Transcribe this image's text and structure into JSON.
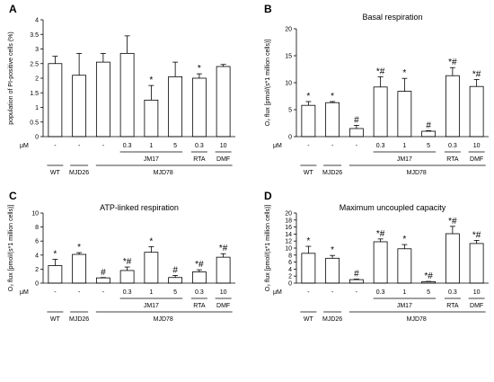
{
  "chart_data": [
    {
      "type": "bar",
      "panel_label": "A",
      "title": "",
      "xlabel": "",
      "ylabel": "population of PI-positive cells (%)",
      "ylim": [
        0,
        4
      ],
      "yticks": [
        0,
        0.5,
        1,
        1.5,
        2,
        2.5,
        3,
        3.5,
        4
      ],
      "categories": [
        "-",
        "-",
        "-",
        "0.3",
        "1",
        "5",
        "0.3",
        "10"
      ],
      "values": [
        2.5,
        2.1,
        2.55,
        2.85,
        1.25,
        2.05,
        2.0,
        2.4
      ],
      "errors": [
        0.25,
        0.75,
        0.3,
        0.6,
        0.5,
        0.5,
        0.15,
        0.07
      ],
      "annotations": [
        "",
        "",
        "",
        "",
        "*",
        "",
        "*",
        ""
      ]
    },
    {
      "type": "bar",
      "panel_label": "B",
      "title": "Basal respiration",
      "xlabel": "",
      "ylabel": "O₂ flux [pmol/(s*1 million cells)]",
      "ylim": [
        0,
        20
      ],
      "yticks": [
        0,
        5,
        10,
        15,
        20
      ],
      "categories": [
        "-",
        "-",
        "-",
        "0.3",
        "1",
        "5",
        "0.3",
        "10"
      ],
      "values": [
        5.8,
        6.3,
        1.5,
        9.2,
        8.4,
        1.0,
        11.3,
        9.3
      ],
      "errors": [
        0.7,
        0.2,
        0.6,
        1.9,
        2.4,
        0.1,
        1.5,
        1.3
      ],
      "annotations": [
        "*",
        "*",
        "#",
        "*#",
        "*",
        "#",
        "*#",
        "*#"
      ]
    },
    {
      "type": "bar",
      "panel_label": "C",
      "title": "ATP-linked respiration",
      "xlabel": "",
      "ylabel": "O₂ flux [pmol/(s*1 million cells)]",
      "ylim": [
        0,
        10
      ],
      "yticks": [
        0,
        2,
        4,
        6,
        8,
        10
      ],
      "categories": [
        "-",
        "-",
        "-",
        "0.3",
        "1",
        "5",
        "0.3",
        "10"
      ],
      "values": [
        2.5,
        4.1,
        0.75,
        1.8,
        4.4,
        0.8,
        1.6,
        3.7
      ],
      "errors": [
        0.9,
        0.25,
        0.05,
        0.5,
        0.8,
        0.3,
        0.3,
        0.5
      ],
      "annotations": [
        "*",
        "*",
        "#",
        "*#",
        "*",
        "#",
        "*#",
        "*#"
      ]
    },
    {
      "type": "bar",
      "panel_label": "D",
      "title": "Maximum uncoupled capacity",
      "xlabel": "",
      "ylabel": "O₂ flux [pmol/(s*1 million cells)]",
      "ylim": [
        0,
        20
      ],
      "yticks": [
        0,
        2,
        4,
        6,
        8,
        10,
        12,
        14,
        16,
        18,
        20
      ],
      "categories": [
        "-",
        "-",
        "-",
        "0.3",
        "1",
        "5",
        "0.3",
        "10"
      ],
      "values": [
        8.5,
        7.1,
        1.0,
        11.8,
        9.8,
        0.4,
        14.1,
        11.3
      ],
      "errors": [
        2.0,
        0.8,
        0.15,
        0.8,
        1.2,
        0.1,
        2.1,
        0.9
      ],
      "annotations": [
        "*",
        "*",
        "#",
        "*#",
        "*",
        "*#",
        "*#",
        "*#"
      ]
    }
  ],
  "group_labels": {
    "unit": "μM",
    "wt": "WT",
    "mjd26": "MJD26",
    "jm17": "JM17",
    "rta": "RTA",
    "dmf": "DMF",
    "mjd78": "MJD78"
  }
}
